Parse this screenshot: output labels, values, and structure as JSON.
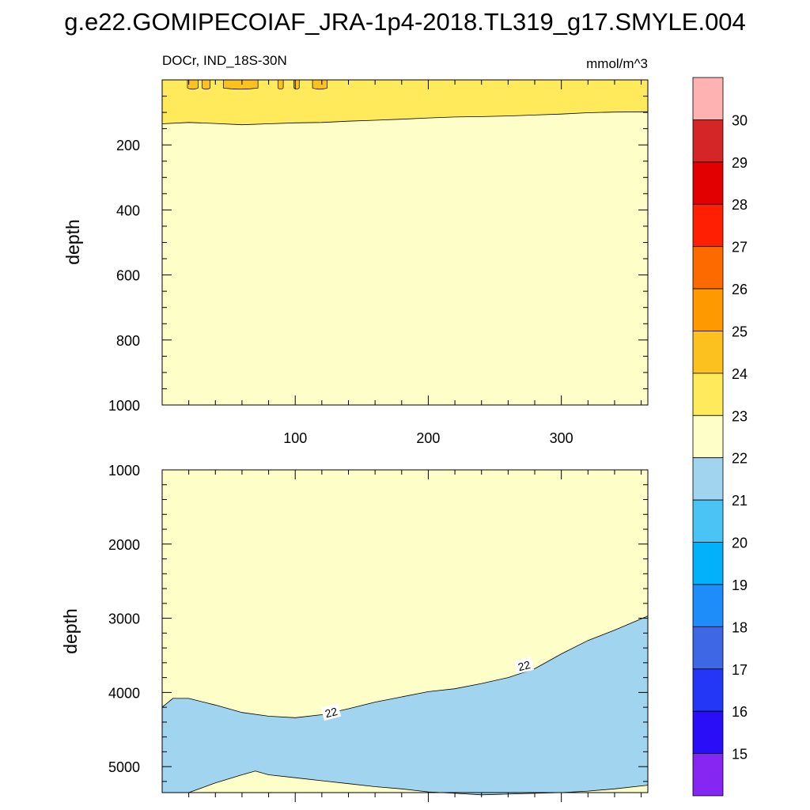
{
  "title": "g.e22.GOMIPECOIAF_JRA-1p4-2018.TL319_g17.SMYLE.004",
  "subtitle_left": "DOCr, IND_18S-30N",
  "subtitle_right": "mmol/m^3",
  "colors": {
    "below_22": "#a1d4ee",
    "band_22_23": "#fefec8",
    "band_23_24": "#feea5a",
    "band_24_25": "#fdc11f"
  },
  "chart_data": [
    {
      "type": "heatmap",
      "panel": "top",
      "xlabel": "",
      "ylabel": "depth",
      "xlim": [
        0,
        365
      ],
      "ylim": [
        1000,
        0
      ],
      "xticks": [
        "100",
        "200",
        "300"
      ],
      "yticks": [
        "200",
        "400",
        "600",
        "800",
        "1000"
      ],
      "contour_23_boundary": {
        "x": [
          0,
          20,
          40,
          60,
          80,
          100,
          120,
          140,
          160,
          180,
          200,
          220,
          240,
          260,
          280,
          300,
          320,
          340,
          365
        ],
        "depth": [
          135,
          131,
          134,
          138,
          135,
          132,
          131,
          127,
          124,
          121,
          117,
          114,
          113,
          111,
          108,
          105,
          101,
          99,
          98
        ]
      },
      "surface_24_25_patches_x": [
        [
          19,
          27
        ],
        [
          30,
          36
        ],
        [
          46,
          72
        ],
        [
          87,
          91
        ],
        [
          99,
          103
        ],
        [
          113,
          124
        ]
      ],
      "surface_24_25_patch_depth": 25
    },
    {
      "type": "heatmap",
      "panel": "bottom",
      "xlabel": "",
      "ylabel": "depth",
      "xlim": [
        0,
        365
      ],
      "ylim": [
        5350,
        1000
      ],
      "yticks": [
        "1000",
        "2000",
        "3000",
        "4000",
        "5000"
      ],
      "contour_22_upper": {
        "x": [
          0,
          8,
          20,
          40,
          60,
          80,
          100,
          120,
          140,
          160,
          180,
          200,
          220,
          240,
          260,
          280,
          300,
          320,
          340,
          365
        ],
        "depth": [
          4200,
          4080,
          4080,
          4170,
          4270,
          4320,
          4340,
          4300,
          4220,
          4130,
          4060,
          3990,
          3950,
          3880,
          3800,
          3680,
          3480,
          3300,
          3160,
          2970
        ]
      },
      "contour_22_lower": {
        "x": [
          20,
          40,
          60,
          70,
          80,
          100,
          120,
          140,
          160,
          180,
          200,
          220,
          240,
          260,
          280,
          300,
          320,
          340,
          365
        ],
        "depth": [
          5350,
          5220,
          5110,
          5060,
          5110,
          5150,
          5190,
          5230,
          5270,
          5300,
          5340,
          5360,
          5380,
          5370,
          5360,
          5350,
          5330,
          5300,
          5250
        ]
      },
      "contour_labels": [
        {
          "text": "22",
          "x": 127,
          "depth": 4270
        },
        {
          "text": "22",
          "x": 272,
          "depth": 3640
        }
      ]
    }
  ],
  "colorbar": {
    "tick_labels": [
      "15",
      "16",
      "17",
      "18",
      "19",
      "20",
      "21",
      "22",
      "23",
      "24",
      "25",
      "26",
      "27",
      "28",
      "29",
      "30"
    ],
    "colors": [
      "#8526f2",
      "#2a0ef8",
      "#2437f6",
      "#3e67e6",
      "#1f8df9",
      "#03b1fa",
      "#4ac4f5",
      "#a1d4ee",
      "#fefec8",
      "#feea5a",
      "#fdc11f",
      "#fe9901",
      "#fc6a00",
      "#fe2000",
      "#e20000",
      "#d42527",
      "#ffb2b2"
    ]
  }
}
